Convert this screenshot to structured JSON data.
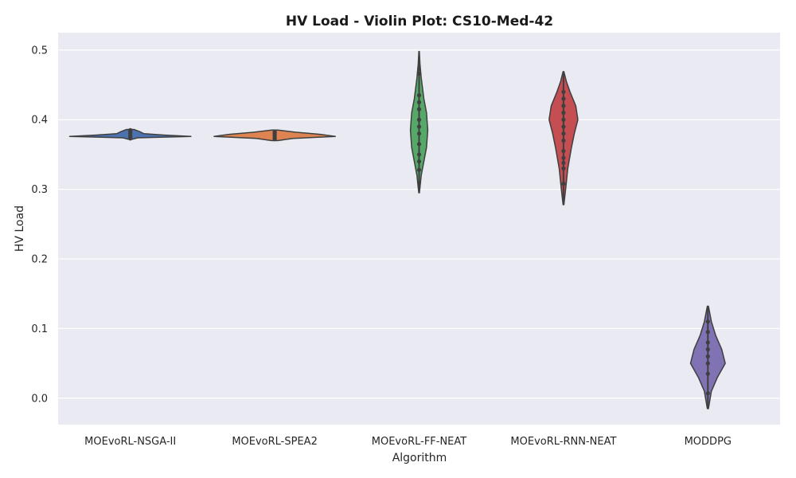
{
  "chart_data": {
    "type": "violin",
    "title": "HV Load - Violin Plot: CS10-Med-42",
    "xlabel": "Algorithm",
    "ylabel": "HV Load",
    "ylim": [
      -0.038,
      0.525
    ],
    "yticks": [
      "0.0",
      "0.1",
      "0.2",
      "0.3",
      "0.4",
      "0.5"
    ],
    "ytick_values": [
      0.0,
      0.1,
      0.2,
      0.3,
      0.4,
      0.5
    ],
    "grid": true,
    "categories": [
      "MOEvoRL-NSGA-II",
      "MOEvoRL-SPEA2",
      "MOEvoRL-FF-NEAT",
      "MOEvoRL-RNN-NEAT",
      "MODDPG"
    ],
    "colors": [
      "#4c72b0",
      "#dd8452",
      "#55a868",
      "#c44e52",
      "#8172b3"
    ],
    "series": [
      {
        "min": 0.372,
        "max": 0.386,
        "max_half_width": 0.42,
        "profile": [
          [
            0.372,
            0.04
          ],
          [
            0.374,
            0.12
          ],
          [
            0.376,
            1.0
          ],
          [
            0.378,
            0.55
          ],
          [
            0.38,
            0.22
          ],
          [
            0.383,
            0.15
          ],
          [
            0.386,
            0.06
          ]
        ],
        "points": [
          0.373,
          0.375,
          0.377,
          0.38,
          0.382,
          0.384,
          0.385
        ]
      },
      {
        "min": 0.37,
        "max": 0.385,
        "max_half_width": 0.42,
        "profile": [
          [
            0.37,
            0.05
          ],
          [
            0.373,
            0.3
          ],
          [
            0.376,
            1.0
          ],
          [
            0.379,
            0.75
          ],
          [
            0.382,
            0.35
          ],
          [
            0.385,
            0.05
          ]
        ],
        "points": [
          0.372,
          0.374,
          0.377,
          0.379,
          0.381,
          0.383
        ]
      },
      {
        "min": 0.295,
        "max": 0.498,
        "max_half_width": 0.06,
        "profile": [
          [
            0.295,
            0.04
          ],
          [
            0.32,
            0.25
          ],
          [
            0.34,
            0.55
          ],
          [
            0.36,
            0.85
          ],
          [
            0.385,
            1.0
          ],
          [
            0.41,
            0.85
          ],
          [
            0.43,
            0.55
          ],
          [
            0.46,
            0.25
          ],
          [
            0.48,
            0.1
          ],
          [
            0.498,
            0.03
          ]
        ],
        "points": [
          0.328,
          0.34,
          0.35,
          0.365,
          0.38,
          0.39,
          0.4,
          0.415,
          0.425,
          0.435,
          0.466
        ]
      },
      {
        "min": 0.278,
        "max": 0.469,
        "max_half_width": 0.1,
        "profile": [
          [
            0.278,
            0.03
          ],
          [
            0.3,
            0.15
          ],
          [
            0.33,
            0.3
          ],
          [
            0.36,
            0.55
          ],
          [
            0.38,
            0.75
          ],
          [
            0.4,
            1.0
          ],
          [
            0.42,
            0.85
          ],
          [
            0.44,
            0.45
          ],
          [
            0.455,
            0.2
          ],
          [
            0.469,
            0.03
          ]
        ],
        "points": [
          0.308,
          0.33,
          0.338,
          0.345,
          0.355,
          0.37,
          0.38,
          0.39,
          0.4,
          0.41,
          0.42,
          0.43,
          0.44
        ]
      },
      {
        "min": -0.015,
        "max": 0.132,
        "max_half_width": 0.12,
        "profile": [
          [
            -0.015,
            0.03
          ],
          [
            0.01,
            0.2
          ],
          [
            0.03,
            0.55
          ],
          [
            0.05,
            1.0
          ],
          [
            0.07,
            0.8
          ],
          [
            0.09,
            0.45
          ],
          [
            0.11,
            0.2
          ],
          [
            0.132,
            0.03
          ]
        ],
        "points": [
          0.007,
          0.035,
          0.05,
          0.06,
          0.07,
          0.08,
          0.095,
          0.11
        ]
      }
    ]
  }
}
